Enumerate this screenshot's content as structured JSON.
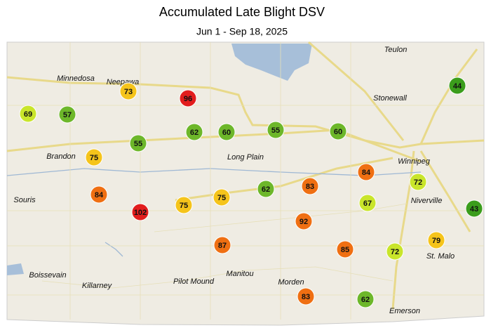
{
  "header": {
    "title": "Accumulated Late Blight DSV",
    "subtitle": "Jun 1 - Sep 18, 2025"
  },
  "places": [
    "Teulon",
    "Minnedosa",
    "Neepawa",
    "Stonewall",
    "Brandon",
    "Winnipeg",
    "Long Plain",
    "Souris",
    "Niverville",
    "St. Malo",
    "Boissevain",
    "Killarney",
    "Pilot Mound",
    "Manitou",
    "Morden",
    "Emerson"
  ],
  "stations": [
    {
      "value": 69,
      "color": "#c9e52b"
    },
    {
      "value": 57,
      "color": "#6db72a"
    },
    {
      "value": 73,
      "color": "#f5c41b"
    },
    {
      "value": 96,
      "color": "#e21d1d"
    },
    {
      "value": 55,
      "color": "#6db72a"
    },
    {
      "value": 62,
      "color": "#6db72a"
    },
    {
      "value": 60,
      "color": "#6db72a"
    },
    {
      "value": 55,
      "color": "#6db72a"
    },
    {
      "value": 60,
      "color": "#6db72a"
    },
    {
      "value": 44,
      "color": "#3b9d1c"
    },
    {
      "value": 75,
      "color": "#f5c41b"
    },
    {
      "value": 84,
      "color": "#ef6f12"
    },
    {
      "value": 102,
      "color": "#e21d1d"
    },
    {
      "value": 75,
      "color": "#f5c41b"
    },
    {
      "value": 75,
      "color": "#f5c41b"
    },
    {
      "value": 62,
      "color": "#6db72a"
    },
    {
      "value": 83,
      "color": "#ef6f12"
    },
    {
      "value": 84,
      "color": "#ef6f12"
    },
    {
      "value": 72,
      "color": "#c9e52b"
    },
    {
      "value": 67,
      "color": "#c9e52b"
    },
    {
      "value": 43,
      "color": "#3b9d1c"
    },
    {
      "value": 92,
      "color": "#ef6f12"
    },
    {
      "value": 87,
      "color": "#ef6f12"
    },
    {
      "value": 85,
      "color": "#ef6f12"
    },
    {
      "value": 72,
      "color": "#c9e52b"
    },
    {
      "value": 79,
      "color": "#f5c41b"
    },
    {
      "value": 83,
      "color": "#ef6f12"
    },
    {
      "value": 62,
      "color": "#6db72a"
    }
  ]
}
